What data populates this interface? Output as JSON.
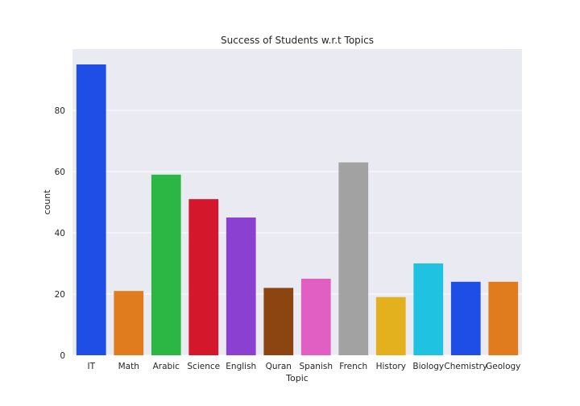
{
  "chart_data": {
    "type": "bar",
    "title": "Success of Students w.r.t Topics",
    "xlabel": "Topic",
    "ylabel": "count",
    "categories": [
      "IT",
      "Math",
      "Arabic",
      "Science",
      "English",
      "Quran",
      "Spanish",
      "French",
      "History",
      "Biology",
      "Chemistry",
      "Geology"
    ],
    "values": [
      95,
      21,
      59,
      51,
      45,
      22,
      25,
      63,
      19,
      30,
      24,
      24
    ],
    "colors": [
      "#1f4ee6",
      "#e07b1e",
      "#2cb744",
      "#d4172a",
      "#8b40d2",
      "#8c4511",
      "#e15ec2",
      "#a2a2a2",
      "#e2b11d",
      "#1fc2e0",
      "#1f4ee6",
      "#e07b1e"
    ],
    "ylim": [
      0,
      100
    ],
    "yticks": [
      0,
      20,
      40,
      60,
      80
    ],
    "grid": true,
    "legend": "none",
    "background": "#eaeaf2"
  }
}
